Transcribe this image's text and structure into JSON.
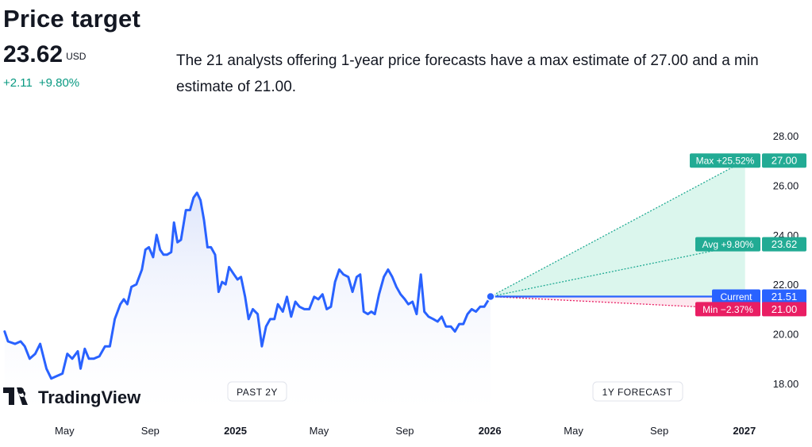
{
  "header": {
    "title": "Price target",
    "price": "23.62",
    "currency": "USD",
    "change_abs": "+2.11",
    "change_pct": "+9.80%",
    "description": "The 21 analysts offering 1-year price forecasts have a max estimate of 27.00 and a min estimate of 21.00."
  },
  "brand": {
    "name": "TradingView"
  },
  "period_labels": {
    "past": "PAST 2Y",
    "forecast": "1Y FORECAST"
  },
  "colors": {
    "line": "#2962ff",
    "area_fill": "#e8edfc",
    "positive": "#22ab94",
    "forecast_fill": "#d5f5ea",
    "negative": "#e91e63",
    "current": "#2962ff"
  },
  "chart_data": {
    "type": "line",
    "title": "",
    "xlabel": "",
    "ylabel": "",
    "ylim": [
      17.5,
      28.6
    ],
    "y_ticks": [
      "28.00",
      "26.00",
      "24.00",
      "22.00",
      "20.00",
      "18.00"
    ],
    "x_ticks": [
      {
        "label": "May",
        "t": "2024-05",
        "bold": false
      },
      {
        "label": "Sep",
        "t": "2024-09",
        "bold": false
      },
      {
        "label": "2025",
        "t": "2025-01",
        "bold": true
      },
      {
        "label": "May",
        "t": "2025-05",
        "bold": false
      },
      {
        "label": "Sep",
        "t": "2025-09",
        "bold": false
      },
      {
        "label": "2026",
        "t": "2026-01",
        "bold": true
      },
      {
        "label": "May",
        "t": "2026-05",
        "bold": false
      },
      {
        "label": "Sep",
        "t": "2026-09",
        "bold": false
      },
      {
        "label": "2027",
        "t": "2027-01",
        "bold": true
      }
    ],
    "series": [
      {
        "values": [
          [
            "2024-02-05",
            20.1
          ],
          [
            "2024-02-10",
            19.7
          ],
          [
            "2024-02-20",
            19.6
          ],
          [
            "2024-02-28",
            19.7
          ],
          [
            "2024-03-05",
            19.5
          ],
          [
            "2024-03-12",
            19.0
          ],
          [
            "2024-03-20",
            19.2
          ],
          [
            "2024-03-27",
            19.6
          ],
          [
            "2024-04-05",
            18.6
          ],
          [
            "2024-04-12",
            18.2
          ],
          [
            "2024-04-20",
            18.3
          ],
          [
            "2024-04-28",
            18.4
          ],
          [
            "2024-05-05",
            19.2
          ],
          [
            "2024-05-12",
            19.0
          ],
          [
            "2024-05-20",
            19.3
          ],
          [
            "2024-05-24",
            18.6
          ],
          [
            "2024-05-30",
            19.4
          ],
          [
            "2024-06-05",
            19.0
          ],
          [
            "2024-06-12",
            19.0
          ],
          [
            "2024-06-20",
            19.1
          ],
          [
            "2024-06-28",
            19.5
          ],
          [
            "2024-07-05",
            19.5
          ],
          [
            "2024-07-12",
            20.6
          ],
          [
            "2024-07-20",
            21.2
          ],
          [
            "2024-07-25",
            21.4
          ],
          [
            "2024-07-30",
            21.2
          ],
          [
            "2024-08-05",
            21.9
          ],
          [
            "2024-08-12",
            22.0
          ],
          [
            "2024-08-20",
            22.6
          ],
          [
            "2024-08-25",
            23.4
          ],
          [
            "2024-08-30",
            23.5
          ],
          [
            "2024-09-05",
            23.1
          ],
          [
            "2024-09-10",
            24.0
          ],
          [
            "2024-09-15",
            23.4
          ],
          [
            "2024-09-20",
            23.2
          ],
          [
            "2024-09-25",
            23.2
          ],
          [
            "2024-10-01",
            23.3
          ],
          [
            "2024-10-05",
            24.5
          ],
          [
            "2024-10-10",
            23.7
          ],
          [
            "2024-10-15",
            23.8
          ],
          [
            "2024-10-22",
            25.0
          ],
          [
            "2024-10-28",
            25.0
          ],
          [
            "2024-11-02",
            25.5
          ],
          [
            "2024-11-07",
            25.7
          ],
          [
            "2024-11-12",
            25.4
          ],
          [
            "2024-11-17",
            24.6
          ],
          [
            "2024-11-22",
            23.5
          ],
          [
            "2024-11-27",
            23.5
          ],
          [
            "2024-12-03",
            23.2
          ],
          [
            "2024-12-08",
            21.7
          ],
          [
            "2024-12-13",
            22.1
          ],
          [
            "2024-12-18",
            22.0
          ],
          [
            "2024-12-23",
            22.7
          ],
          [
            "2024-12-30",
            22.4
          ],
          [
            "2025-01-04",
            22.2
          ],
          [
            "2025-01-09",
            22.3
          ],
          [
            "2025-01-15",
            21.5
          ],
          [
            "2025-01-20",
            20.6
          ],
          [
            "2025-01-26",
            21.0
          ],
          [
            "2025-02-02",
            20.8
          ],
          [
            "2025-02-08",
            19.5
          ],
          [
            "2025-02-14",
            20.3
          ],
          [
            "2025-02-20",
            20.6
          ],
          [
            "2025-02-26",
            20.6
          ],
          [
            "2025-03-03",
            21.2
          ],
          [
            "2025-03-10",
            20.9
          ],
          [
            "2025-03-16",
            21.5
          ],
          [
            "2025-03-22",
            20.7
          ],
          [
            "2025-03-28",
            21.3
          ],
          [
            "2025-04-03",
            21.1
          ],
          [
            "2025-04-10",
            21.0
          ],
          [
            "2025-04-17",
            21.0
          ],
          [
            "2025-04-24",
            21.5
          ],
          [
            "2025-04-30",
            21.4
          ],
          [
            "2025-05-06",
            21.6
          ],
          [
            "2025-05-12",
            21.0
          ],
          [
            "2025-05-18",
            21.1
          ],
          [
            "2025-05-24",
            22.1
          ],
          [
            "2025-05-30",
            22.6
          ],
          [
            "2025-06-05",
            22.4
          ],
          [
            "2025-06-12",
            22.3
          ],
          [
            "2025-06-18",
            21.7
          ],
          [
            "2025-06-24",
            22.3
          ],
          [
            "2025-06-29",
            22.4
          ],
          [
            "2025-07-04",
            20.9
          ],
          [
            "2025-07-10",
            20.8
          ],
          [
            "2025-07-15",
            20.9
          ],
          [
            "2025-07-20",
            20.8
          ],
          [
            "2025-07-26",
            21.6
          ],
          [
            "2025-08-02",
            22.3
          ],
          [
            "2025-08-08",
            22.6
          ],
          [
            "2025-08-14",
            22.3
          ],
          [
            "2025-08-20",
            21.9
          ],
          [
            "2025-08-26",
            21.6
          ],
          [
            "2025-09-01",
            21.4
          ],
          [
            "2025-09-06",
            21.2
          ],
          [
            "2025-09-12",
            21.3
          ],
          [
            "2025-09-18",
            20.8
          ],
          [
            "2025-09-24",
            22.4
          ],
          [
            "2025-09-29",
            20.9
          ],
          [
            "2025-10-05",
            20.7
          ],
          [
            "2025-10-12",
            20.6
          ],
          [
            "2025-10-18",
            20.5
          ],
          [
            "2025-10-24",
            20.7
          ],
          [
            "2025-10-30",
            20.3
          ],
          [
            "2025-11-06",
            20.3
          ],
          [
            "2025-11-12",
            20.1
          ],
          [
            "2025-11-18",
            20.4
          ],
          [
            "2025-11-24",
            20.4
          ],
          [
            "2025-11-30",
            20.8
          ],
          [
            "2025-12-06",
            21.0
          ],
          [
            "2025-12-12",
            20.9
          ],
          [
            "2025-12-18",
            21.1
          ],
          [
            "2025-12-24",
            21.1
          ],
          [
            "2026-01-02",
            21.51
          ]
        ]
      }
    ],
    "forecast": {
      "current": {
        "label": "Current",
        "value": 21.51,
        "text": "21.51"
      },
      "max": {
        "label": "Max +25.52%",
        "value": 27.0,
        "text": "27.00"
      },
      "avg": {
        "label": "Avg +9.80%",
        "value": 23.62,
        "text": "23.62"
      },
      "min": {
        "label": "Min −2.37%",
        "value": 21.0,
        "text": "21.00"
      },
      "start": "2026-01-02",
      "end": "2027-01-02"
    }
  }
}
